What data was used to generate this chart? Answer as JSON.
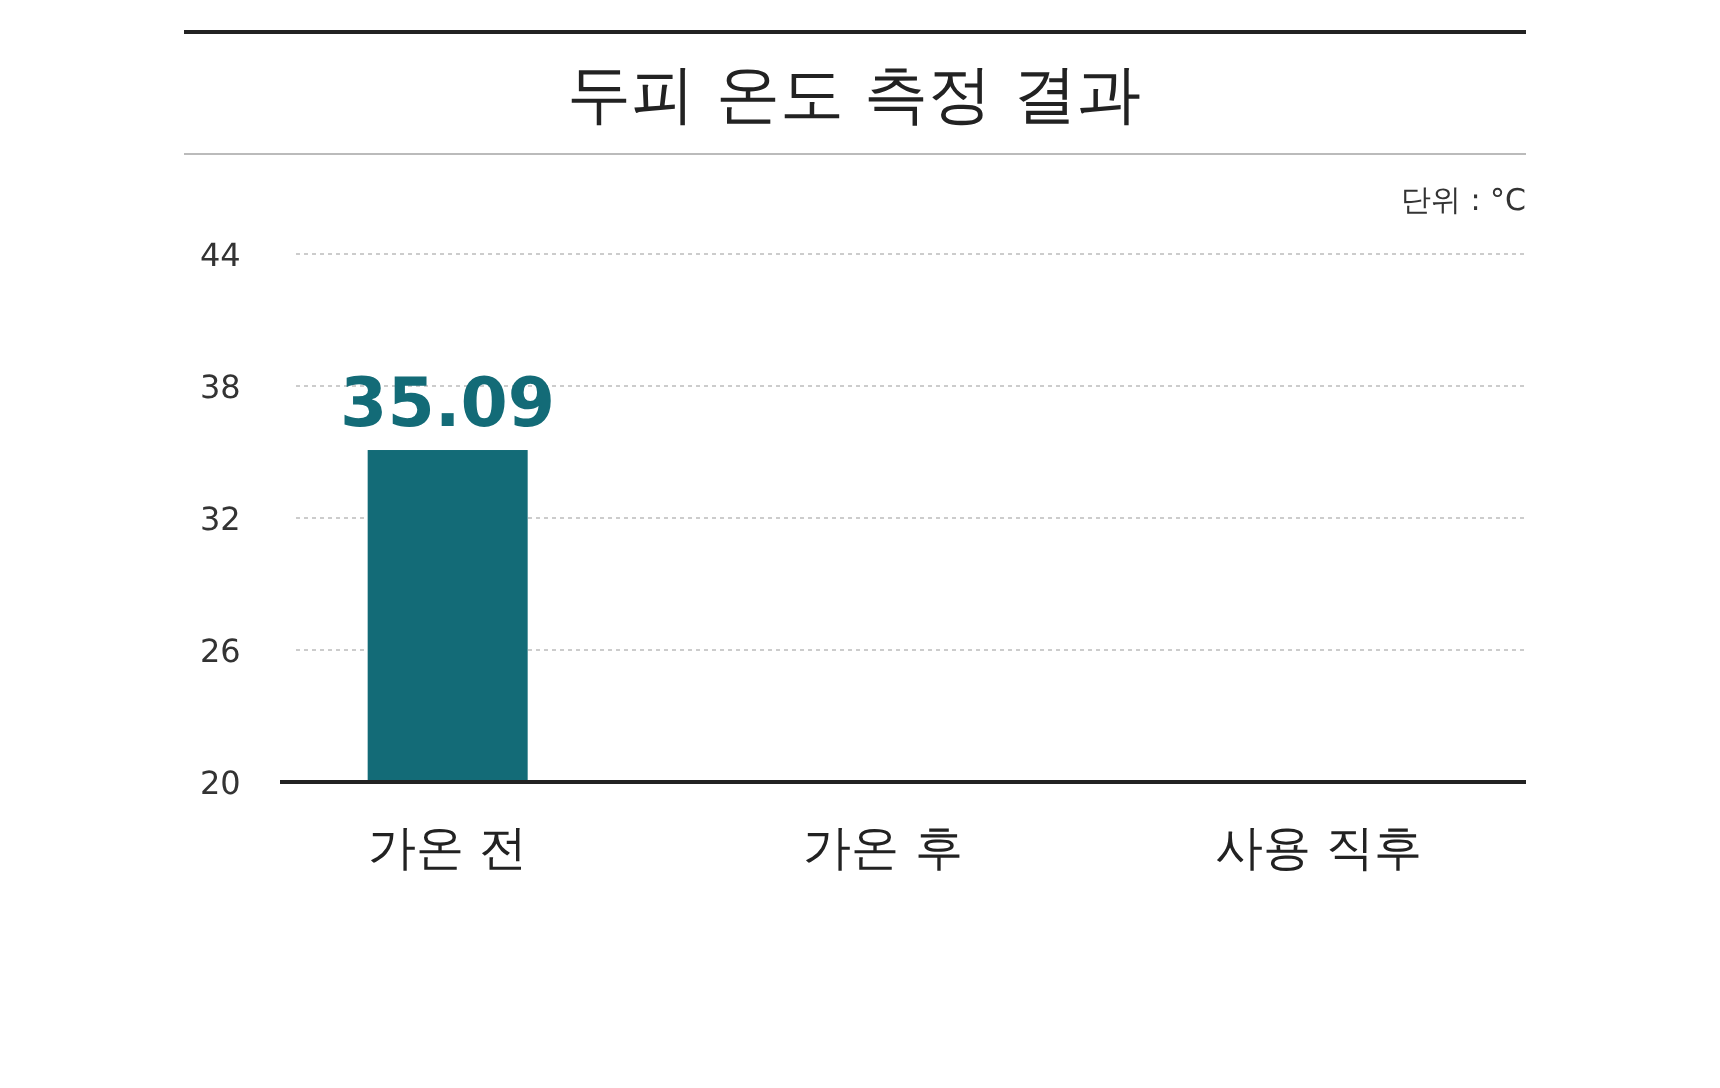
{
  "chart_data": {
    "type": "bar",
    "title": "두피 온도 측정 결과",
    "annotations": [
      "단위 : °C"
    ],
    "categories": [
      "가온 전",
      "가온 후",
      "사용 직후"
    ],
    "values": [
      35.09,
      null,
      null
    ],
    "color": "#136b77",
    "ylim": [
      20,
      44
    ],
    "yticks": [
      20,
      26,
      32,
      38,
      44
    ],
    "grid": "y",
    "data_labels": true
  }
}
